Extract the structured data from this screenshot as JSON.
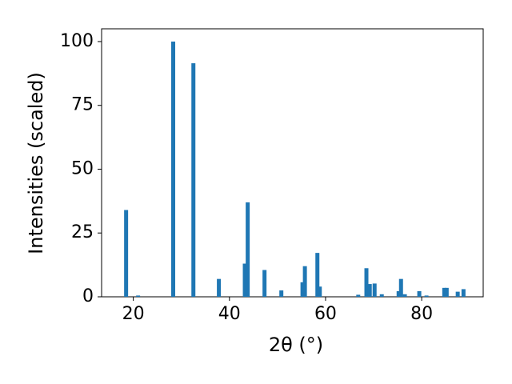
{
  "chart_data": {
    "type": "bar",
    "x_label": "2θ (°)",
    "y_label": "Intensities (scaled)",
    "color": "#1f77b4",
    "x": [
      18.5,
      21.0,
      28.3,
      32.5,
      37.8,
      43.2,
      43.8,
      47.3,
      50.8,
      55.2,
      55.7,
      58.3,
      58.8,
      66.8,
      68.5,
      69.2,
      70.2,
      71.7,
      75.2,
      75.7,
      76.5,
      79.5,
      81.0,
      84.7,
      85.2,
      87.5,
      88.7
    ],
    "values": [
      34,
      0.5,
      100,
      91.5,
      7,
      13,
      37,
      10.5,
      2.5,
      5.7,
      12,
      17.2,
      4,
      0.8,
      11.2,
      5,
      5.2,
      1,
      2.2,
      7,
      1,
      2.2,
      0.5,
      3.5,
      3.5,
      2,
      3
    ],
    "xlim": [
      13.4,
      92.8
    ],
    "ylim": [
      0,
      105
    ],
    "xticks": [
      20,
      40,
      60,
      80
    ],
    "yticks": [
      0,
      25,
      50,
      75,
      100
    ]
  }
}
